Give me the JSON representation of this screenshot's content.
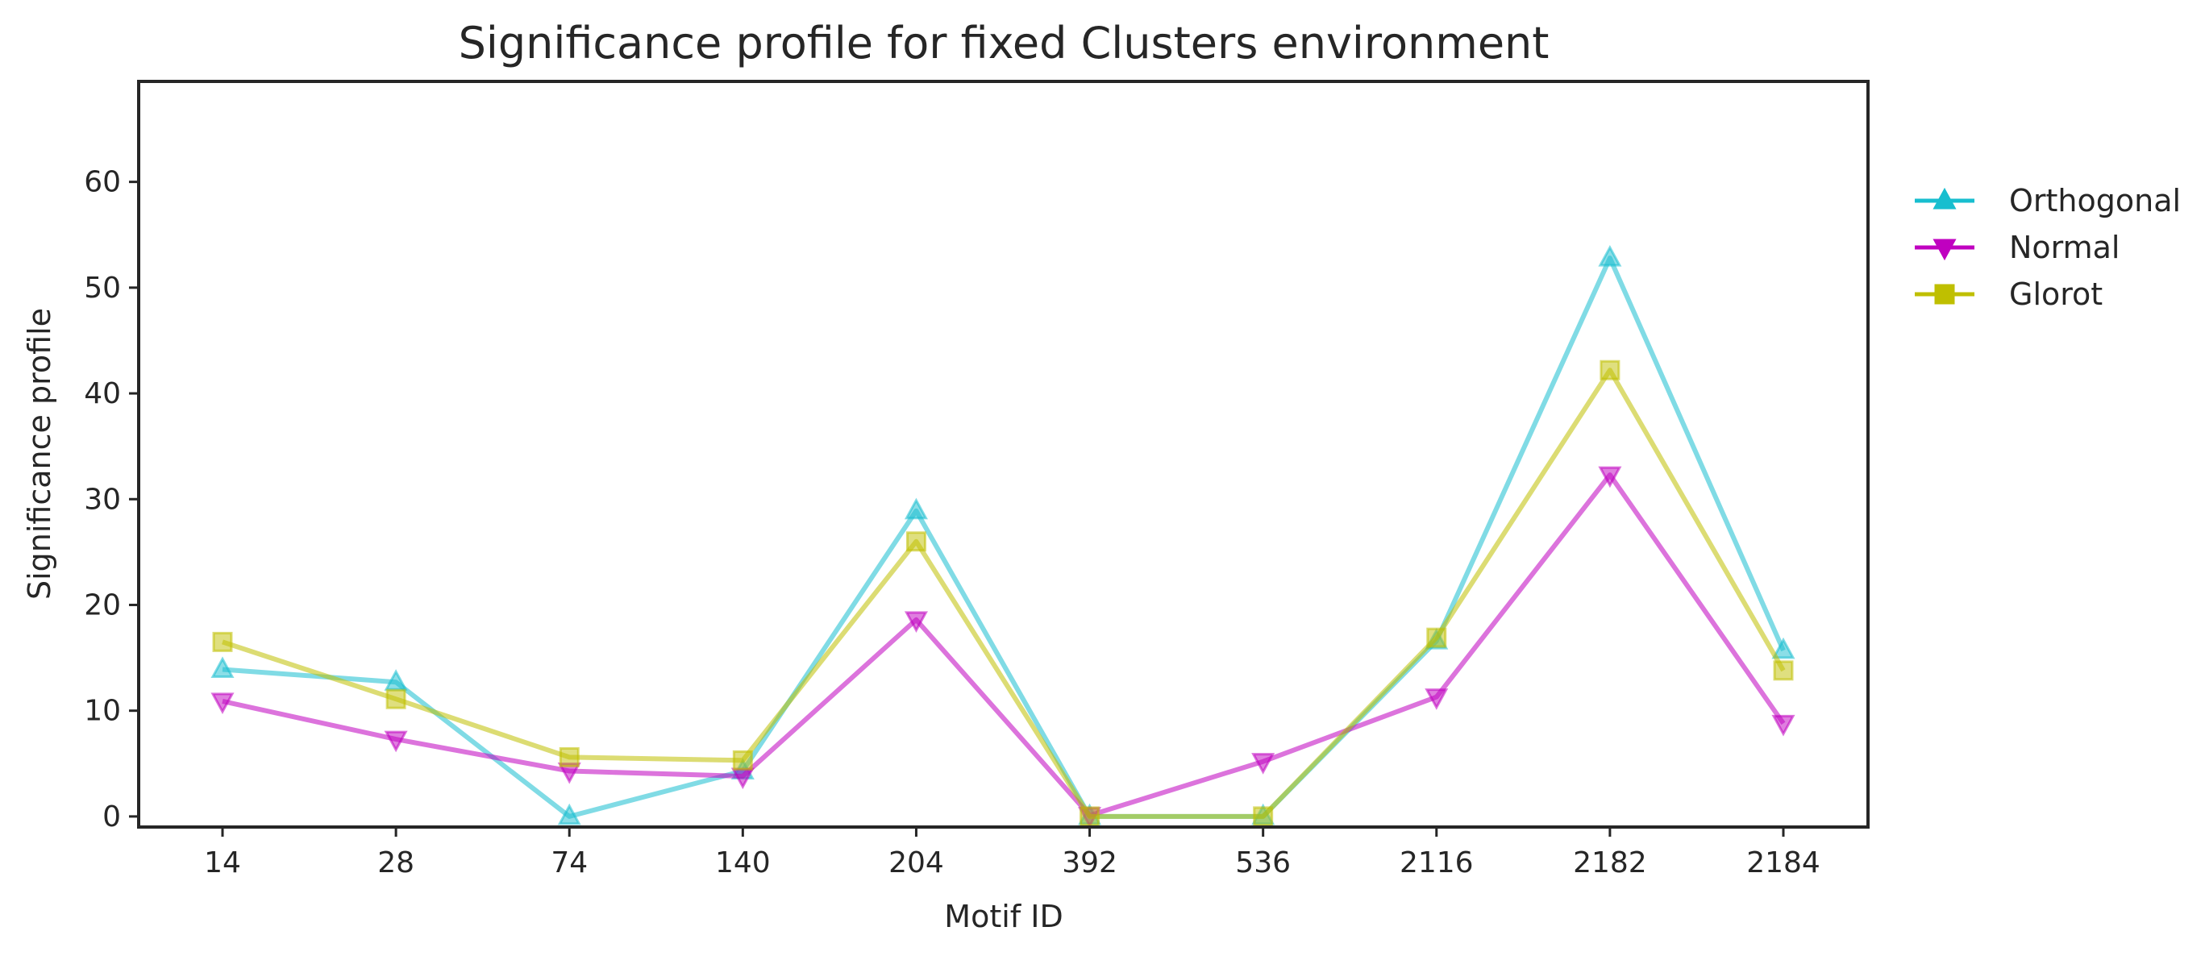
{
  "chart_data": {
    "type": "line",
    "title": "Significance profile for fixed Clusters environment",
    "xlabel": "Motif ID",
    "ylabel": "Significance profile",
    "categories": [
      "14",
      "28",
      "74",
      "140",
      "204",
      "392",
      "536",
      "2116",
      "2182",
      "2184"
    ],
    "ylim": [
      -1,
      69.5
    ],
    "yticks": [
      0,
      10,
      20,
      30,
      40,
      50,
      60
    ],
    "grid": false,
    "legend_position": "outside-right",
    "series": [
      {
        "name": "Orthogonal",
        "color": "#17becf",
        "marker": "triangle-up",
        "values": [
          13.9,
          12.7,
          0.0,
          4.3,
          28.9,
          0.0,
          0.0,
          16.6,
          52.8,
          15.7
        ]
      },
      {
        "name": "Normal",
        "color": "#c000c0",
        "marker": "triangle-down",
        "values": [
          10.9,
          7.3,
          4.3,
          3.8,
          18.6,
          0.1,
          5.2,
          11.3,
          32.3,
          8.8
        ]
      },
      {
        "name": "Glorot",
        "color": "#bfbf00",
        "marker": "square",
        "values": [
          16.5,
          11.1,
          5.6,
          5.3,
          26.0,
          0.0,
          0.0,
          16.9,
          42.2,
          13.8
        ]
      }
    ]
  }
}
